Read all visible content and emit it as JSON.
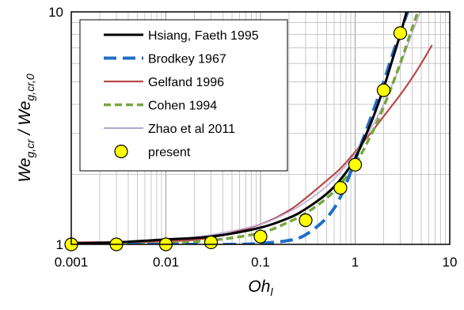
{
  "chart_data": {
    "type": "line",
    "x_scale": "log",
    "y_scale": "log",
    "xlim": [
      0.001,
      10
    ],
    "ylim": [
      1,
      10
    ],
    "x_ticks": [
      "0.001",
      "0.01",
      "0.1",
      "1",
      "10"
    ],
    "y_ticks": [
      "1",
      "10"
    ],
    "grid": true,
    "legend_position": "top-left",
    "xlabel": {
      "main": "Oh",
      "sub": "l"
    },
    "ylabel": {
      "main1": "We",
      "sub1": "g,cr",
      "sep": " / ",
      "main2": "We",
      "sub2": "g,cr,0"
    },
    "series": [
      {
        "name": "Hsiang, Faeth 1995",
        "style": "solid",
        "color": "#000000",
        "x": [
          0.001,
          0.003,
          0.01,
          0.03,
          0.1,
          0.2,
          0.3,
          0.5,
          0.7,
          1,
          1.5,
          2,
          2.5,
          3,
          3.5
        ],
        "y": [
          1.01,
          1.02,
          1.05,
          1.08,
          1.18,
          1.3,
          1.42,
          1.65,
          1.9,
          2.35,
          3.4,
          4.7,
          6.3,
          8.0,
          10
        ]
      },
      {
        "name": "Brodkey 1967",
        "style": "dashed",
        "color": "#1f6fc5",
        "x": [
          0.001,
          0.01,
          0.05,
          0.1,
          0.2,
          0.3,
          0.5,
          0.7,
          1,
          1.5,
          2,
          2.5,
          3,
          3.6
        ],
        "y": [
          1.0,
          1.0,
          1.0,
          1.01,
          1.04,
          1.1,
          1.3,
          1.6,
          2.3,
          3.6,
          5.0,
          6.6,
          8.2,
          10
        ]
      },
      {
        "name": "Gelfand 1996",
        "style": "solid",
        "color": "#b94a48",
        "x": [
          0.001,
          0.01,
          0.03,
          0.1,
          0.2,
          0.3,
          0.5,
          0.7,
          1,
          1.5,
          2,
          3,
          4,
          5,
          6.5
        ],
        "y": [
          1.02,
          1.03,
          1.07,
          1.22,
          1.4,
          1.58,
          1.88,
          2.12,
          2.5,
          3.05,
          3.55,
          4.4,
          5.2,
          6.0,
          7.2
        ]
      },
      {
        "name": "Cohen 1994",
        "style": "dashed",
        "color": "#77a83a",
        "x": [
          0.001,
          0.003,
          0.01,
          0.03,
          0.1,
          0.2,
          0.3,
          0.5,
          0.7,
          1,
          1.5,
          2,
          3,
          4,
          4.6
        ],
        "y": [
          1.0,
          1.0,
          1.01,
          1.04,
          1.12,
          1.25,
          1.36,
          1.58,
          1.82,
          2.2,
          3.0,
          3.9,
          6.0,
          8.5,
          10
        ]
      },
      {
        "name": "Zhao et al 2011",
        "style": "solid",
        "color": "#9b86c2",
        "x": [
          0.001,
          0.003,
          0.01,
          0.03,
          0.1,
          0.2,
          0.3,
          0.5,
          0.7,
          1,
          1.5,
          2,
          3,
          4,
          4.9
        ],
        "y": [
          1.01,
          1.02,
          1.05,
          1.1,
          1.22,
          1.38,
          1.52,
          1.78,
          2.05,
          2.45,
          3.2,
          4.0,
          5.9,
          8.1,
          10
        ]
      },
      {
        "name": "present",
        "style": "marker",
        "color": "#ffff00",
        "x": [
          0.001,
          0.003,
          0.01,
          0.03,
          0.1,
          0.3,
          0.7,
          1.0,
          2.0,
          3.0
        ],
        "y": [
          1.0,
          1.0,
          1.0,
          1.02,
          1.08,
          1.27,
          1.75,
          2.2,
          4.6,
          8.1
        ]
      }
    ]
  }
}
